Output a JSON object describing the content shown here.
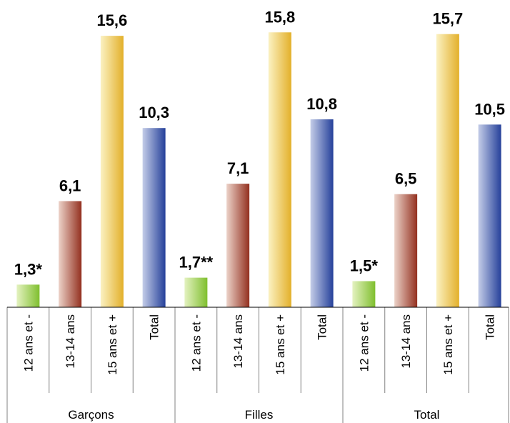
{
  "chart_data": {
    "type": "bar",
    "title": "",
    "xlabel": "",
    "ylabel": "",
    "ylim": [
      0,
      16
    ],
    "grid": false,
    "legend": "none",
    "groups": [
      {
        "name": "Garçons",
        "bars": [
          {
            "category": "12 ans et -",
            "value": 1.3,
            "label": "1,3*"
          },
          {
            "category": "13-14 ans",
            "value": 6.1,
            "label": "6,1"
          },
          {
            "category": "15 ans et +",
            "value": 15.6,
            "label": "15,6"
          },
          {
            "category": "Total",
            "value": 10.3,
            "label": "10,3"
          }
        ]
      },
      {
        "name": "Filles",
        "bars": [
          {
            "category": "12 ans et -",
            "value": 1.7,
            "label": "1,7**"
          },
          {
            "category": "13-14 ans",
            "value": 7.1,
            "label": "7,1"
          },
          {
            "category": "15 ans et +",
            "value": 15.8,
            "label": "15,8"
          },
          {
            "category": "Total",
            "value": 10.8,
            "label": "10,8"
          }
        ]
      },
      {
        "name": "Total",
        "bars": [
          {
            "category": "12 ans et -",
            "value": 1.5,
            "label": "1,5*"
          },
          {
            "category": "13-14 ans",
            "value": 6.5,
            "label": "6,5"
          },
          {
            "category": "15 ans et +",
            "value": 15.7,
            "label": "15,7"
          },
          {
            "category": "Total",
            "value": 10.5,
            "label": "10,5"
          }
        ]
      }
    ],
    "colors": {
      "12 ans et -": [
        "#e4f2c0",
        "#7fbf2e"
      ],
      "13-14 ans": [
        "#ecd2c8",
        "#93301f"
      ],
      "15 ans et +": [
        "#fbf1c2",
        "#e3b02a"
      ],
      "Total": [
        "#c4cde8",
        "#25409a"
      ]
    }
  }
}
